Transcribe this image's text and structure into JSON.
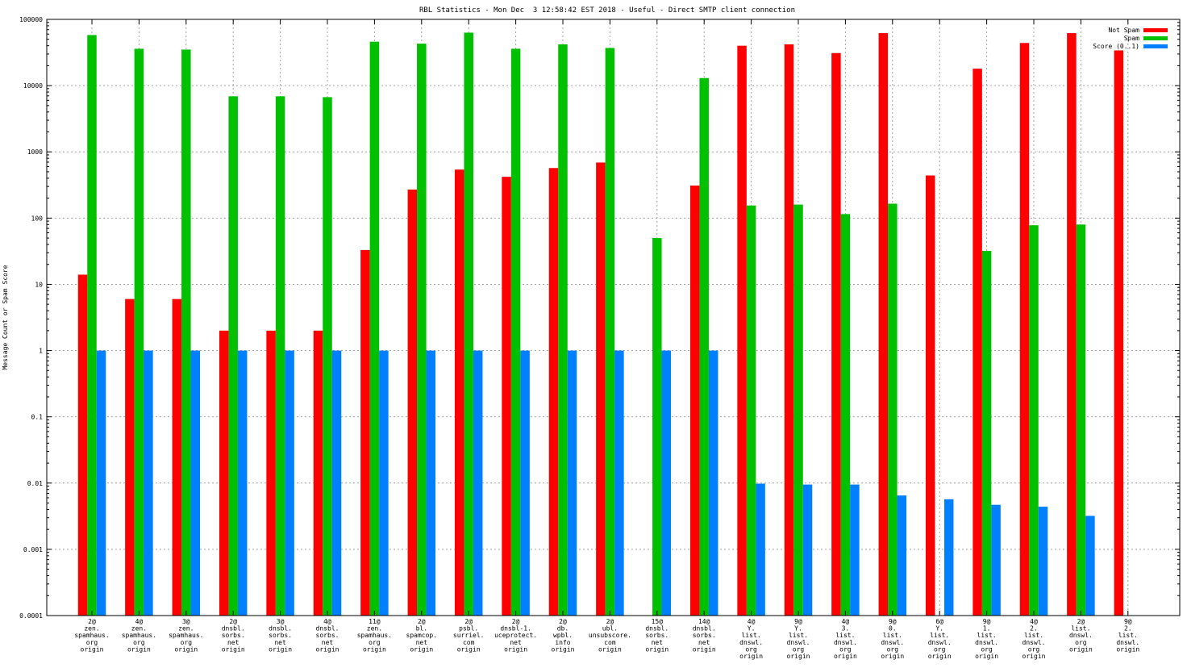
{
  "chart_data": {
    "type": "bar",
    "title": "RBL Statistics - Mon Dec  3 12:58:42 EST 2018 - Useful - Direct SMTP client connection",
    "xlabel": "",
    "ylabel": "Message Count or Spam Score",
    "yscale": "log",
    "ylim": [
      0.0001,
      100000
    ],
    "y_ticks": [
      "0.0001",
      "0.001",
      "0.01",
      "0.1",
      "1",
      "10",
      "100",
      "1000",
      "10000",
      "100000"
    ],
    "grid": true,
    "legend_position": "top-right",
    "categories": [
      [
        "2@",
        "zen.",
        "spamhaus.",
        "org",
        "origin"
      ],
      [
        "4@",
        "zen.",
        "spamhaus.",
        "org",
        "origin"
      ],
      [
        "3@",
        "zen.",
        "spamhaus.",
        "org",
        "origin"
      ],
      [
        "2@",
        "dnsbl.",
        "sorbs.",
        "net",
        "origin"
      ],
      [
        "3@",
        "dnsbl.",
        "sorbs.",
        "net",
        "origin"
      ],
      [
        "4@",
        "dnsbl.",
        "sorbs.",
        "net",
        "origin"
      ],
      [
        "11@",
        "zen.",
        "spamhaus.",
        "org",
        "origin"
      ],
      [
        "2@",
        "bl.",
        "spamcop.",
        "net",
        "origin"
      ],
      [
        "2@",
        "psbl.",
        "surriel.",
        "com",
        "origin"
      ],
      [
        "2@",
        "dnsbl-1.",
        "uceprotect.",
        "net",
        "origin"
      ],
      [
        "2@",
        "db.",
        "wpbl.",
        "info",
        "origin"
      ],
      [
        "2@",
        "ubl.",
        "unsubscore.",
        "com",
        "origin"
      ],
      [
        "15@",
        "dnsbl.",
        "sorbs.",
        "net",
        "origin"
      ],
      [
        "14@",
        "dnsbl.",
        "sorbs.",
        "net",
        "origin"
      ],
      [
        "4@",
        "Y.",
        "list.",
        "dnswl.",
        "org",
        "origin"
      ],
      [
        "9@",
        "Y.",
        "list.",
        "dnswl.",
        "org",
        "origin"
      ],
      [
        "4@",
        "3.",
        "list.",
        "dnswl.",
        "org",
        "origin"
      ],
      [
        "9@",
        "0.",
        "list.",
        "dnswl.",
        "org",
        "origin"
      ],
      [
        "6@",
        "Y.",
        "list.",
        "dnswl.",
        "org",
        "origin"
      ],
      [
        "9@",
        "1.",
        "list.",
        "dnswl.",
        "org",
        "origin"
      ],
      [
        "4@",
        "2.",
        "list.",
        "dnswl.",
        "org",
        "origin"
      ],
      [
        "2@",
        "list.",
        "dnswl.",
        "org",
        "origin"
      ],
      [
        "9@",
        "2.",
        "list.",
        "dnswl.",
        "origin"
      ]
    ],
    "series": [
      {
        "name": "Not Spam",
        "color": "#ff0000",
        "values": [
          14,
          6,
          6,
          2,
          2,
          2,
          33,
          270,
          540,
          420,
          570,
          690,
          null,
          310,
          40000,
          42000,
          31000,
          62000,
          440,
          18000,
          44000,
          62000,
          34000
        ]
      },
      {
        "name": "Spam",
        "color": "#00c000",
        "values": [
          58000,
          36000,
          35000,
          6900,
          6900,
          6700,
          46000,
          43000,
          63000,
          36000,
          42000,
          37000,
          50,
          13000,
          155,
          160,
          115,
          165,
          null,
          32,
          78,
          80,
          null
        ]
      },
      {
        "name": "Score (0..1)",
        "color": "#0080ff",
        "values": [
          1,
          1,
          1,
          1,
          1,
          1,
          1,
          1,
          1,
          1,
          1,
          1,
          1,
          1,
          0.0098,
          0.0095,
          0.0095,
          0.0065,
          0.0057,
          0.0047,
          0.0044,
          0.0032,
          null
        ]
      }
    ]
  }
}
